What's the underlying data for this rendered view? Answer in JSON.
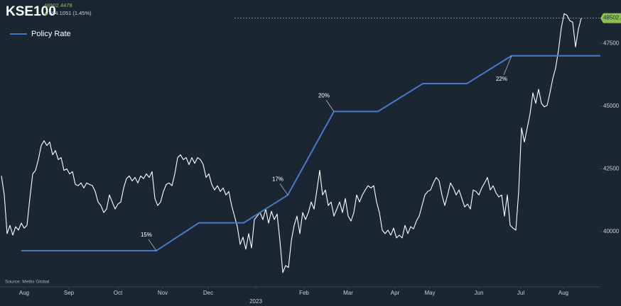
{
  "chart_data": {
    "type": "line",
    "title": "KSE100",
    "quote_price": "48502.4478",
    "quote_change": "694.1051 (1.45%)",
    "source": "Source: Mettis Global",
    "current": 48502.44,
    "legend": "top-left",
    "grid": false,
    "xlim": [
      -0.5,
      210.75
    ],
    "xticks": [
      {
        "value": 8,
        "label": "Aug"
      },
      {
        "value": 23.75,
        "label": "Sep"
      },
      {
        "value": 41,
        "label": "Oct"
      },
      {
        "value": 56.75,
        "label": "Nov"
      },
      {
        "value": 72.75,
        "label": "Dec"
      },
      {
        "value": 89.5,
        "label": "2023"
      },
      {
        "value": 106.5,
        "label": "Feb"
      },
      {
        "value": 122,
        "label": "Mar"
      },
      {
        "value": 138.5,
        "label": "Apr"
      },
      {
        "value": 150.75,
        "label": "May"
      },
      {
        "value": 168,
        "label": "Jun"
      },
      {
        "value": 182.75,
        "label": "Jul"
      },
      {
        "value": 197.75,
        "label": "Aug"
      }
    ],
    "ylim": [
      37800,
      49000
    ],
    "yticks": [
      40000,
      42500,
      45000,
      47500
    ],
    "y2lim": [
      13.7,
      23.8
    ],
    "series": [
      {
        "color": "#ffffff",
        "x": [
          0,
          1,
          2,
          3,
          4,
          5,
          6,
          7,
          8,
          9,
          10,
          11,
          12,
          13,
          14,
          15,
          16,
          17,
          18,
          19,
          20,
          21,
          22,
          23,
          24,
          25,
          26,
          27,
          28,
          29,
          30,
          31,
          32,
          33,
          34,
          35,
          36,
          37,
          38,
          39,
          40,
          41,
          42,
          43,
          44,
          45,
          46,
          47,
          48,
          49,
          50,
          51,
          52,
          53,
          54,
          55,
          56,
          57,
          58,
          59,
          60,
          61,
          62,
          63,
          64,
          65,
          66,
          67,
          68,
          69,
          70,
          71,
          72,
          73,
          74,
          75,
          76,
          77,
          78,
          79,
          80,
          81,
          82,
          83,
          84,
          85,
          86,
          87,
          88,
          89,
          90,
          91,
          92,
          93,
          94,
          95,
          96,
          97,
          98,
          99,
          100,
          101,
          102,
          103,
          104,
          105,
          106,
          107,
          108,
          109,
          110,
          111,
          112,
          113,
          114,
          115,
          116,
          117,
          118,
          119,
          120,
          121,
          122,
          123,
          124,
          125,
          126,
          127,
          128,
          129,
          130,
          131,
          132,
          133,
          134,
          135,
          136,
          137,
          138,
          139,
          140,
          141,
          142,
          143,
          144,
          145,
          146,
          147,
          148,
          149,
          150,
          151,
          152,
          153,
          154,
          155,
          156,
          157,
          158,
          159,
          160,
          161,
          162,
          163,
          164,
          165,
          166,
          167,
          168,
          169,
          170,
          171,
          172,
          173,
          174,
          175,
          176,
          177,
          178,
          179,
          180,
          181,
          182,
          183,
          184,
          185,
          186,
          187,
          188,
          189,
          190,
          191,
          192,
          193,
          194,
          195,
          196,
          197,
          198,
          199,
          200,
          201,
          202,
          203,
          204
        ],
        "values": [
          42220,
          41460,
          39920,
          40250,
          39860,
          40200,
          40060,
          40340,
          40140,
          40250,
          41320,
          42300,
          42440,
          42870,
          43430,
          43620,
          43430,
          43570,
          43060,
          43230,
          42870,
          42950,
          42440,
          42500,
          42300,
          42390,
          41880,
          41830,
          41940,
          41740,
          41940,
          41880,
          41830,
          41600,
          41180,
          41040,
          40760,
          40900,
          41460,
          41180,
          40900,
          41100,
          41180,
          41740,
          42110,
          42220,
          42020,
          42160,
          41940,
          42220,
          42110,
          42300,
          42160,
          42390,
          41320,
          41040,
          41180,
          41600,
          41880,
          41940,
          41830,
          42300,
          42950,
          43060,
          42870,
          42950,
          42670,
          42950,
          42720,
          42950,
          42870,
          42670,
          42160,
          42300,
          41880,
          41660,
          41830,
          41600,
          41740,
          41460,
          41600,
          41040,
          40620,
          40200,
          39490,
          39780,
          39300,
          39920,
          39350,
          40480,
          40620,
          40760,
          40480,
          40900,
          40340,
          40810,
          40480,
          40700,
          39630,
          38370,
          38650,
          38570,
          39630,
          40250,
          40620,
          39920,
          40760,
          40480,
          40760,
          41180,
          40900,
          41660,
          42440,
          41460,
          41660,
          41040,
          41180,
          40620,
          40900,
          41180,
          40760,
          41320,
          40620,
          40420,
          40760,
          41460,
          41180,
          41460,
          41660,
          41830,
          41740,
          41830,
          41180,
          40760,
          40060,
          39920,
          40060,
          39860,
          40140,
          39750,
          39860,
          39750,
          40250,
          39920,
          40200,
          40110,
          40420,
          40620,
          41040,
          41460,
          41600,
          41660,
          41940,
          42160,
          42020,
          41460,
          41040,
          41460,
          41940,
          41740,
          41460,
          41660,
          41320,
          40980,
          41100,
          40900,
          41660,
          41600,
          41460,
          41740,
          41940,
          42160,
          41660,
          41830,
          41550,
          41380,
          41460,
          40620,
          41460,
          40250,
          40140,
          40060,
          41600,
          44130,
          43570,
          44130,
          44690,
          45530,
          45110,
          45670,
          45110,
          44970,
          45030,
          45530,
          46100,
          46520,
          47220,
          48120,
          48680,
          48620,
          48400,
          48340,
          47360,
          48060,
          48502.44
        ]
      },
      {
        "name": "Policy Rate",
        "color": "#4a78c8",
        "axis": "y2",
        "x": [
          7,
          54.5,
          69.5,
          85.25,
          100.75,
          117,
          132.5,
          148.25,
          163.75,
          179.5,
          210.75
        ],
        "values": [
          15,
          15,
          16,
          16,
          17,
          20,
          20,
          21,
          21,
          22,
          22
        ],
        "value_labels": [
          null,
          "15%",
          null,
          null,
          "17%",
          "20%",
          null,
          null,
          null,
          "22%",
          null
        ]
      }
    ]
  }
}
